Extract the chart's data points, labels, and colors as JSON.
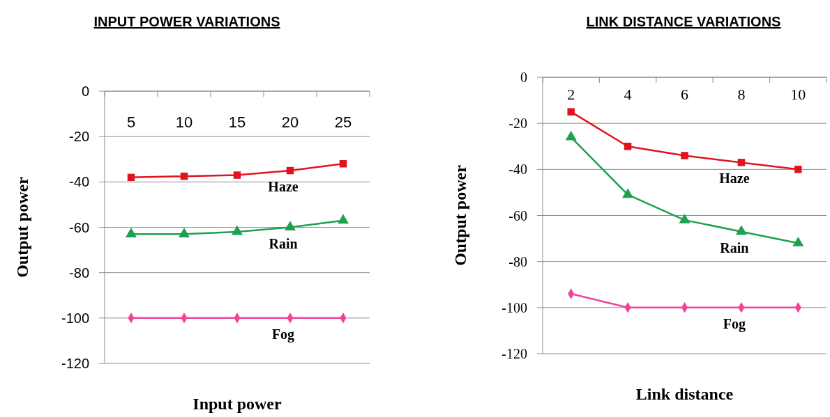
{
  "chart_data": [
    {
      "type": "line",
      "title": "INPUT POWER VARIATIONS",
      "xlabel": "Input power",
      "ylabel": "Output power",
      "categories": [
        "5",
        "10",
        "15",
        "20",
        "25"
      ],
      "ylim": [
        -120,
        0
      ],
      "yticks": [
        -120,
        -100,
        -80,
        -60,
        -40,
        -20,
        0
      ],
      "grid": "y",
      "series": [
        {
          "name": "Haze",
          "color": "#e0141e",
          "marker": "square",
          "values": [
            -38,
            -37.5,
            -37,
            -35,
            -32
          ]
        },
        {
          "name": "Rain",
          "color": "#1ea050",
          "marker": "triangle",
          "values": [
            -63,
            -63,
            -62,
            -60,
            -57
          ]
        },
        {
          "name": "Fog",
          "color": "#f0449a",
          "marker": "diamond",
          "values": [
            -100,
            -100,
            -100,
            -100,
            -100
          ]
        }
      ]
    },
    {
      "type": "line",
      "title": "LINK DISTANCE VARIATIONS",
      "xlabel": "Link distance",
      "ylabel": "Output power",
      "categories": [
        "2",
        "4",
        "6",
        "8",
        "10"
      ],
      "ylim": [
        -120,
        0
      ],
      "yticks": [
        -120,
        -100,
        -80,
        -60,
        -40,
        -20,
        0
      ],
      "grid": "y",
      "series": [
        {
          "name": "Haze",
          "color": "#e0141e",
          "marker": "square",
          "values": [
            -15,
            -30,
            -34,
            -37,
            -40
          ]
        },
        {
          "name": "Rain",
          "color": "#1ea050",
          "marker": "triangle",
          "values": [
            -26,
            -51,
            -62,
            -67,
            -72
          ]
        },
        {
          "name": "Fog",
          "color": "#f0449a",
          "marker": "diamond",
          "values": [
            -94,
            -100,
            -100,
            -100,
            -100
          ]
        }
      ]
    }
  ]
}
